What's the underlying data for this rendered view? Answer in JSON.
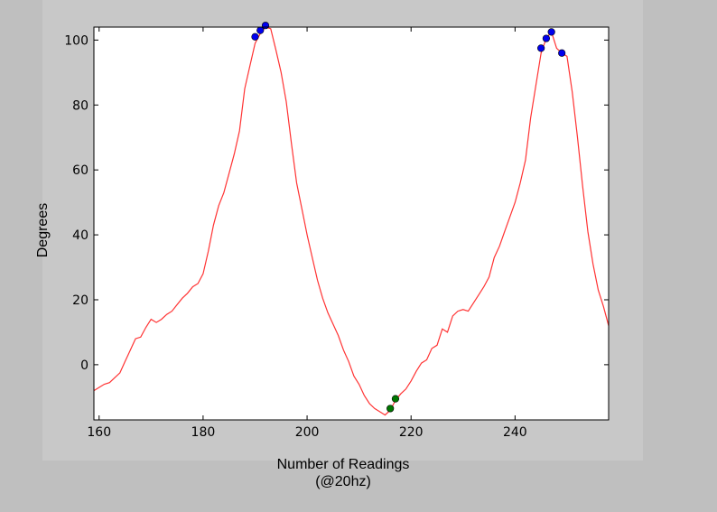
{
  "chart_data": {
    "type": "line",
    "title": "",
    "xlabel": [
      "Number of Readings",
      "(@20hz)"
    ],
    "ylabel": "Degrees",
    "xlim": [
      159,
      258
    ],
    "ylim": [
      -17,
      104
    ],
    "xticks": [
      160,
      180,
      200,
      220,
      240
    ],
    "yticks": [
      0,
      20,
      40,
      60,
      80,
      100
    ],
    "grid": false,
    "line_color": "#ff3333",
    "line": {
      "x": [
        159,
        160,
        161,
        162,
        163,
        164,
        165,
        166,
        167,
        168,
        169,
        170,
        171,
        172,
        173,
        174,
        175,
        176,
        177,
        178,
        179,
        180,
        181,
        182,
        183,
        184,
        185,
        186,
        187,
        188,
        189,
        190,
        191,
        192,
        193,
        194,
        195,
        196,
        197,
        198,
        199,
        200,
        201,
        202,
        203,
        204,
        205,
        206,
        207,
        208,
        209,
        210,
        211,
        212,
        213,
        214,
        215,
        216,
        217,
        218,
        219,
        220,
        221,
        222,
        223,
        224,
        225,
        226,
        227,
        228,
        229,
        230,
        231,
        232,
        233,
        234,
        235,
        236,
        237,
        238,
        239,
        240,
        241,
        242,
        243,
        244,
        245,
        246,
        247,
        248,
        249,
        250,
        251,
        252,
        253,
        254,
        255,
        256,
        257,
        258
      ],
      "y": [
        -8,
        -7,
        -6,
        -5.5,
        -4,
        -2.5,
        1,
        4.5,
        8,
        8.5,
        11.5,
        14,
        13,
        14,
        15.5,
        16.5,
        18.5,
        20.5,
        22,
        24,
        25,
        28,
        35,
        43,
        49,
        53,
        59,
        65,
        72,
        85,
        92,
        99,
        102,
        104,
        103.5,
        97,
        90,
        81,
        68,
        56,
        48,
        40,
        33,
        26,
        20.5,
        16,
        12.5,
        9,
        4.5,
        1,
        -3.5,
        -6,
        -9.5,
        -12,
        -13.5,
        -14.5,
        -15.5,
        -14,
        -11,
        -9,
        -7.5,
        -5,
        -2,
        0.5,
        1.5,
        5,
        6,
        11,
        10,
        15,
        16.5,
        17,
        16.5,
        19,
        21.5,
        24,
        27,
        33,
        36.5,
        41,
        45.5,
        50,
        56,
        63,
        76,
        86,
        96,
        100.5,
        102.5,
        97.5,
        96,
        95,
        84,
        70,
        55,
        41,
        31,
        23,
        18,
        12
      ]
    },
    "markers": [
      {
        "color": "#0000ee",
        "points": [
          [
            190,
            101
          ],
          [
            191,
            103
          ],
          [
            192,
            104.5
          ],
          [
            245,
            97.5
          ],
          [
            246,
            100.5
          ],
          [
            247,
            102.5
          ],
          [
            249,
            96
          ]
        ]
      },
      {
        "color": "#007700",
        "points": [
          [
            216,
            -13.5
          ],
          [
            217,
            -10.5
          ]
        ]
      }
    ]
  }
}
